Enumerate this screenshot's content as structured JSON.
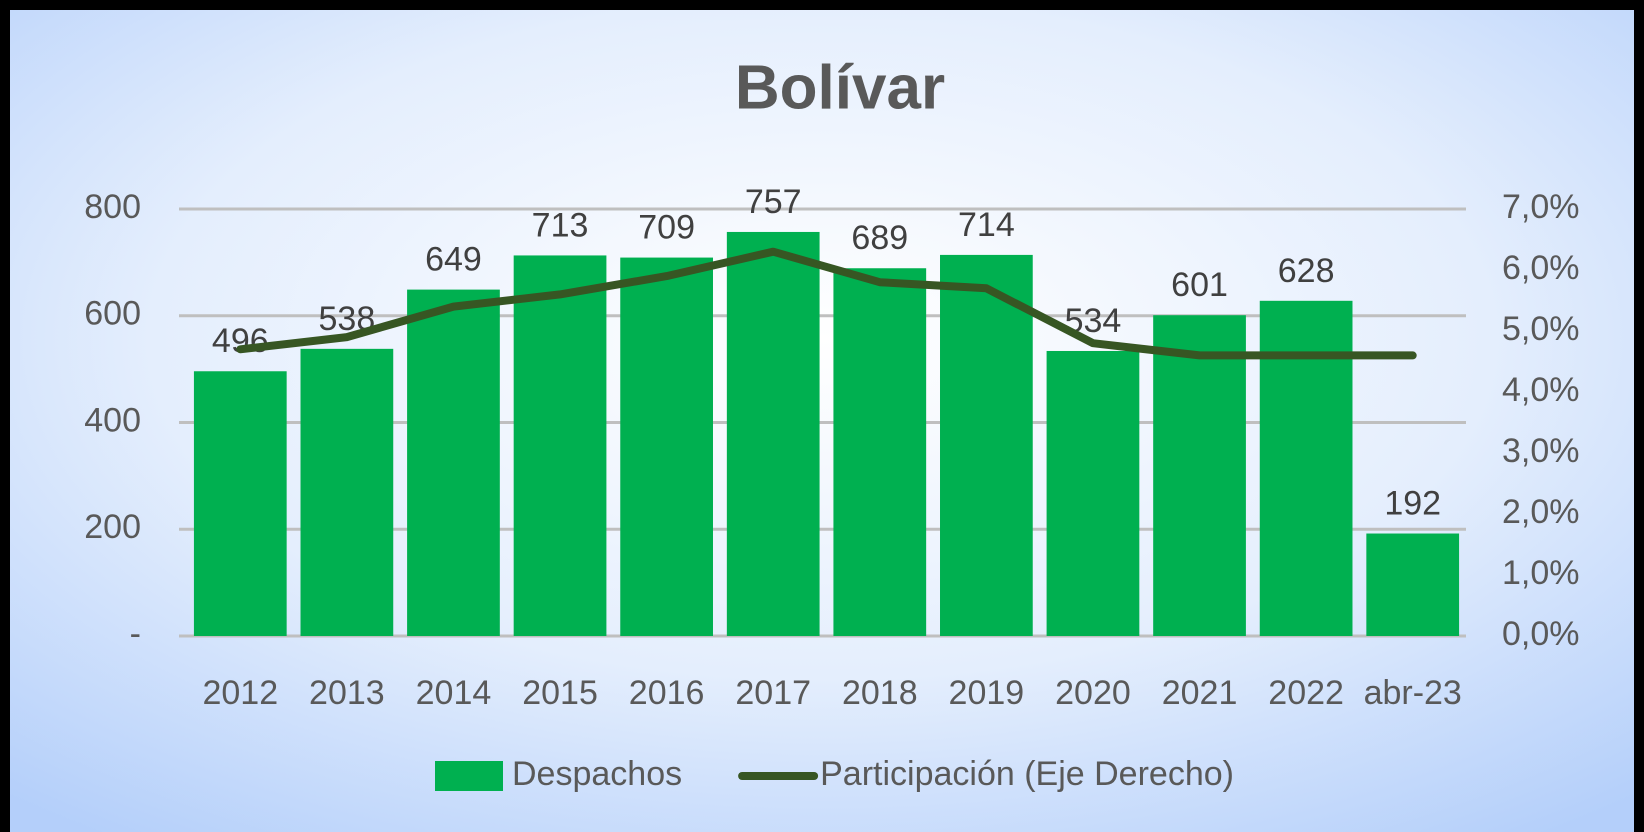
{
  "chart_data": {
    "type": "bar",
    "title": "Bolívar",
    "categories": [
      "2012",
      "2013",
      "2014",
      "2015",
      "2016",
      "2017",
      "2018",
      "2019",
      "2020",
      "2021",
      "2022",
      "abr-23"
    ],
    "series": [
      {
        "name": "Despachos",
        "type": "bar",
        "color": "#00b050",
        "axis": "y",
        "values": [
          496,
          538,
          649,
          713,
          709,
          757,
          689,
          714,
          534,
          601,
          628,
          192
        ]
      },
      {
        "name": "Participación (Eje Derecho)",
        "type": "line",
        "color": "#375623",
        "axis": "y2",
        "values": [
          4.7,
          4.9,
          5.4,
          5.6,
          5.9,
          6.3,
          5.8,
          5.7,
          4.8,
          4.6,
          4.6,
          4.6
        ]
      }
    ],
    "ylim": [
      0,
      800
    ],
    "yticks": [
      {
        "value": 0,
        "label": "-"
      },
      200,
      400,
      600,
      800
    ],
    "y2lim": [
      0,
      7
    ],
    "y2ticks": [
      {
        "value": 0,
        "label": "0,0%"
      },
      {
        "value": 1,
        "label": "1,0%"
      },
      {
        "value": 2,
        "label": "2,0%"
      },
      {
        "value": 3,
        "label": "3,0%"
      },
      {
        "value": 4,
        "label": "4,0%"
      },
      {
        "value": 5,
        "label": "5,0%"
      },
      {
        "value": 6,
        "label": "6,0%"
      },
      {
        "value": 7,
        "label": "7,0%"
      }
    ],
    "grid": true,
    "legend": "bottom"
  }
}
